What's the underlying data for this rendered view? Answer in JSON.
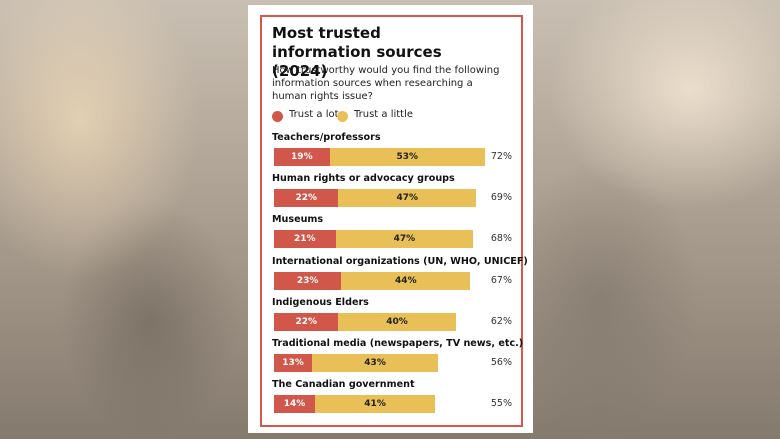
{
  "chart_data": {
    "type": "stacked-bar",
    "title": "Most trusted information sources (2024)",
    "subtitle": "How trustworthy would you find the following information sources when researching a human rights issue?",
    "categories": [
      "Teachers/professors",
      "Human rights or advocacy groups",
      "Museums",
      "International organizations (UN, WHO, UNICEF)",
      "Indigenous Elders",
      "Traditional media (newspapers, TV news, etc.)",
      "The Canadian government"
    ],
    "series": [
      {
        "name": "Trust a lot",
        "color": "#d0574a",
        "text_color": "#ffffff",
        "values": [
          19,
          22,
          21,
          23,
          22,
          13,
          14
        ],
        "value_labels": [
          "19%",
          "22%",
          "21%",
          "23%",
          "22%",
          "13%",
          "14%"
        ]
      },
      {
        "name": "Trust a little",
        "color": "#e9bf57",
        "text_color": "#222222",
        "values": [
          53,
          47,
          47,
          44,
          40,
          43,
          41
        ],
        "value_labels": [
          "53%",
          "47%",
          "47%",
          "44%",
          "40%",
          "43%",
          "41%"
        ]
      }
    ],
    "total_labels": [
      "72%",
      "69%",
      "68%",
      "67%",
      "62%",
      "56%",
      "55%"
    ]
  }
}
